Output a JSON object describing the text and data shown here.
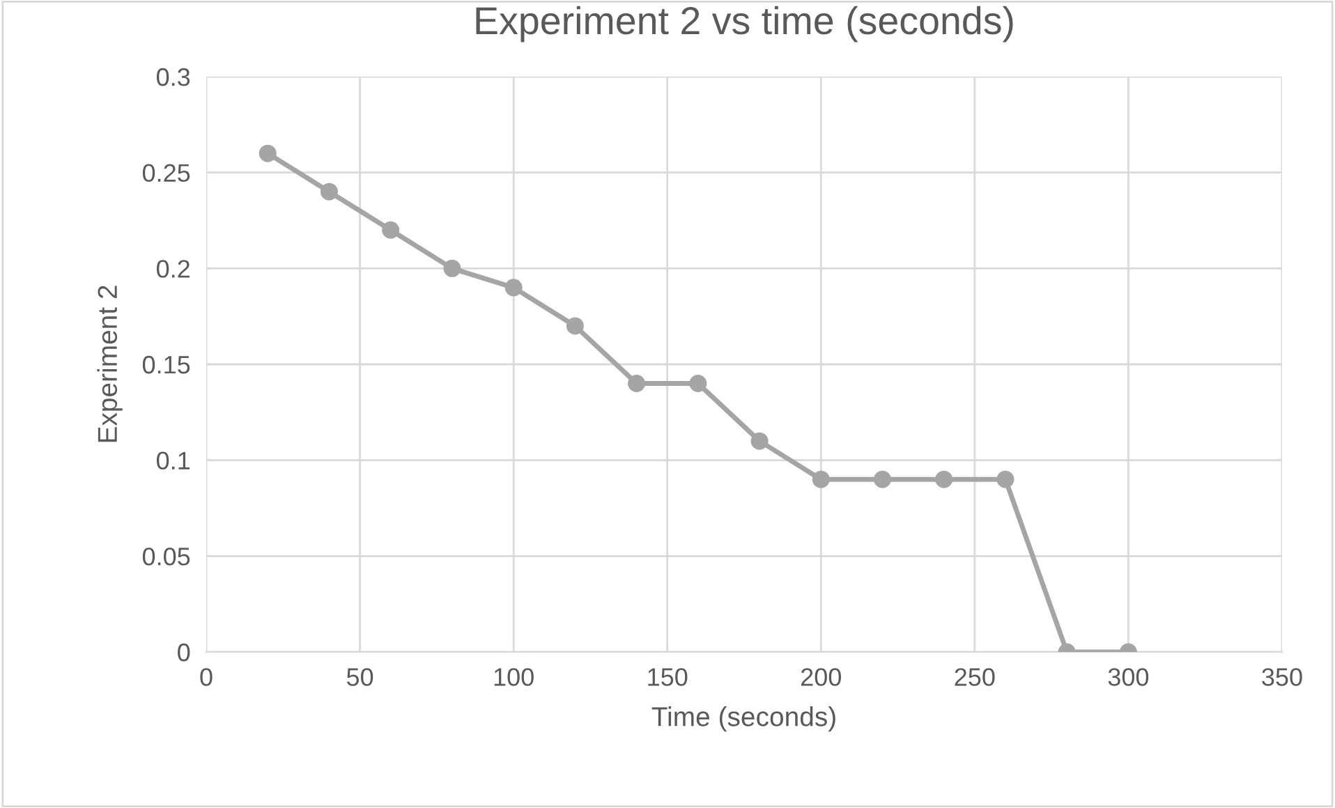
{
  "chart_data": {
    "type": "line",
    "title": "Experiment 2 vs time (seconds)",
    "xlabel": "Time (seconds)",
    "ylabel": "Experiment 2",
    "x": [
      20,
      40,
      60,
      80,
      100,
      120,
      140,
      160,
      180,
      200,
      220,
      240,
      260,
      280,
      300
    ],
    "series": [
      {
        "color": "#a5a5a5",
        "values": [
          0.26,
          0.24,
          0.22,
          0.2,
          0.19,
          0.17,
          0.14,
          0.14,
          0.11,
          0.09,
          0.09,
          0.09,
          0.09,
          0,
          0
        ]
      }
    ],
    "xlim": [
      0,
      350
    ],
    "xticks": [
      0,
      50,
      100,
      150,
      200,
      250,
      300,
      350
    ],
    "ylim": [
      0,
      0.3
    ],
    "yticks": [
      0,
      0.05,
      0.1,
      0.15,
      0.2,
      0.25,
      0.3
    ],
    "grid": true,
    "marker": "circle",
    "line_style": "solid"
  }
}
